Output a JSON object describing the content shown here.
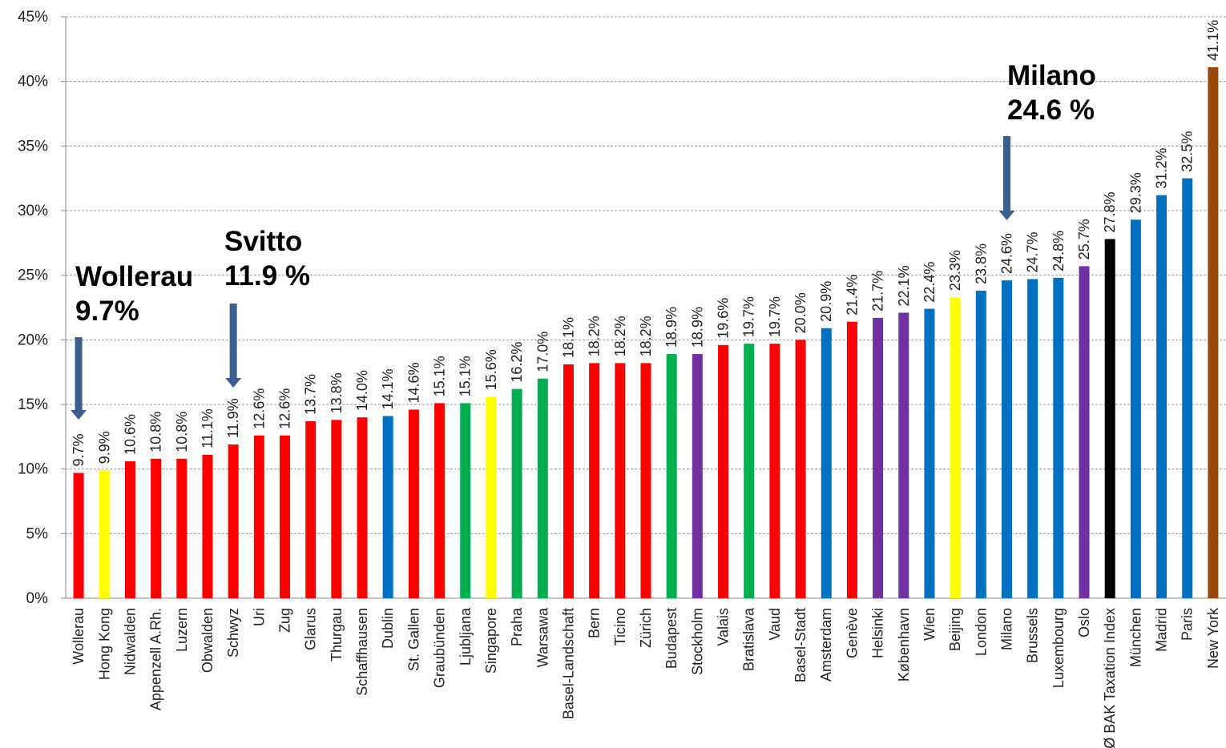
{
  "chart_data": {
    "type": "bar",
    "title": "",
    "xlabel": "",
    "ylabel": "",
    "ylim": [
      0,
      45
    ],
    "yticks": [
      0,
      5,
      10,
      15,
      20,
      25,
      30,
      35,
      40,
      45
    ],
    "ytick_labels": [
      "0%",
      "5%",
      "10%",
      "15%",
      "20%",
      "25%",
      "30%",
      "35%",
      "40%",
      "45%"
    ],
    "grid": true,
    "categories": [
      "Wollerau",
      "Hong Kong",
      "Nidwalden",
      "Appenzell A.Rh.",
      "Luzern",
      "Obwalden",
      "Schwyz",
      "Uri",
      "Zug",
      "Glarus",
      "Thurgau",
      "Schaffhausen",
      "Dublin",
      "St. Gallen",
      "Graubünden",
      "Ljubljana",
      "Singapore",
      "Praha",
      "Warsawa",
      "Basel-Landschaft",
      "Bern",
      "Ticino",
      "Zürich",
      "Budapest",
      "Stockholm",
      "Valais",
      "Bratislava",
      "Vaud",
      "Basel-Stadt",
      "Amsterdam",
      "Genève",
      "Helsinki",
      "København",
      "Wien",
      "Beijing",
      "London",
      "Milano",
      "Brussels",
      "Luxembourg",
      "Oslo",
      "Ø BAK Taxation Index",
      "München",
      "Madrid",
      "Paris",
      "New York"
    ],
    "values": [
      9.7,
      9.9,
      10.6,
      10.8,
      10.8,
      11.1,
      11.9,
      12.6,
      12.6,
      13.7,
      13.8,
      14.0,
      14.1,
      14.6,
      15.1,
      15.1,
      15.6,
      16.2,
      17.0,
      18.1,
      18.2,
      18.2,
      18.2,
      18.9,
      18.9,
      19.6,
      19.7,
      19.7,
      20.0,
      20.9,
      21.4,
      21.7,
      22.1,
      22.4,
      23.3,
      23.8,
      24.6,
      24.7,
      24.8,
      25.7,
      27.8,
      29.3,
      31.2,
      32.5,
      41.1
    ],
    "value_labels": [
      "9.7%",
      "9.9%",
      "10.6%",
      "10.8%",
      "10.8%",
      "11.1%",
      "11.9%",
      "12.6%",
      "12.6%",
      "13.7%",
      "13.8%",
      "14.0%",
      "14.1%",
      "14.6%",
      "15.1%",
      "15.1%",
      "15.6%",
      "16.2%",
      "17.0%",
      "18.1%",
      "18.2%",
      "18.2%",
      "18.2%",
      "18.9%",
      "18.9%",
      "19.6%",
      "19.7%",
      "19.7%",
      "20.0%",
      "20.9%",
      "21.4%",
      "21.7%",
      "22.1%",
      "22.4%",
      "23.3%",
      "23.8%",
      "24.6%",
      "24.7%",
      "24.8%",
      "25.7%",
      "27.8%",
      "29.3%",
      "31.2%",
      "32.5%",
      "41.1%"
    ],
    "bar_colors": [
      "#ff0000",
      "#ffff00",
      "#ff0000",
      "#ff0000",
      "#ff0000",
      "#ff0000",
      "#ff0000",
      "#ff0000",
      "#ff0000",
      "#ff0000",
      "#ff0000",
      "#ff0000",
      "#0070c0",
      "#ff0000",
      "#ff0000",
      "#00b050",
      "#ffff00",
      "#00b050",
      "#00b050",
      "#ff0000",
      "#ff0000",
      "#ff0000",
      "#ff0000",
      "#00b050",
      "#7030a0",
      "#ff0000",
      "#00b050",
      "#ff0000",
      "#ff0000",
      "#0070c0",
      "#ff0000",
      "#7030a0",
      "#7030a0",
      "#0070c0",
      "#ffff00",
      "#0070c0",
      "#0070c0",
      "#0070c0",
      "#0070c0",
      "#7030a0",
      "#000000",
      "#0070c0",
      "#0070c0",
      "#0070c0",
      "#974706"
    ],
    "annotations": [
      {
        "name": "wollerau",
        "lines": [
          "Wollerau",
          "9.7%"
        ],
        "target_category": "Wollerau"
      },
      {
        "name": "svitto",
        "lines": [
          "Svitto",
          "11.9 %"
        ],
        "target_category": "Schwyz"
      },
      {
        "name": "milano",
        "lines": [
          "Milano",
          "24.6 %"
        ],
        "target_category": "Milano"
      }
    ],
    "arrow_color": "#3a5f8f"
  }
}
